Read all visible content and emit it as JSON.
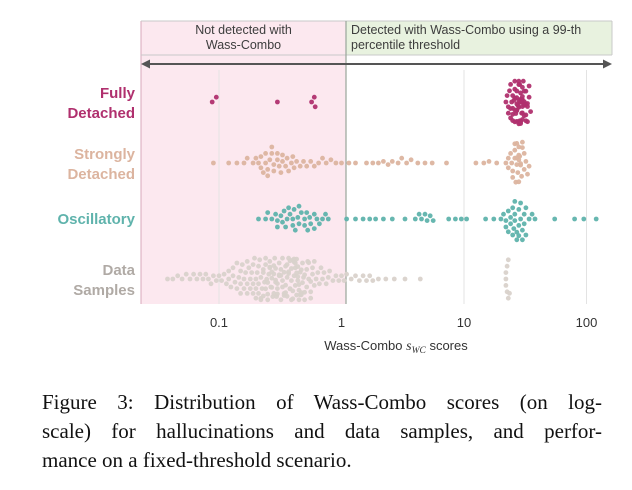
{
  "chart_data": {
    "type": "scatter",
    "subtype": "beeswarm",
    "xscale": "log",
    "xlim": [
      0.03,
      150
    ],
    "xticks": [
      0.1,
      1,
      10,
      100
    ],
    "xtick_labels": [
      "0.1",
      "1",
      "10",
      "100"
    ],
    "xlabel": "Wass-Combo s_WC scores",
    "xlabel_main": "Wass-Combo ",
    "xlabel_sub_s": "s",
    "xlabel_sub_wc": "WC",
    "xlabel_tail": " scores",
    "threshold": 1.0,
    "region_left_label_line1": "Not detected with",
    "region_left_label_line2": "Wass-Combo",
    "region_right_label_line1": "Detected with Wass-Combo using a 99-th",
    "region_right_label_line2": "percentile threshold",
    "grid": "vertical",
    "colors": {
      "fully_detached": "#b0306e",
      "strongly_detached": "#dcb49f",
      "oscillatory": "#5fb3ac",
      "data_samples": "#d9d2cb",
      "left_region": "#fce8ef",
      "right_region": "#e8f2df"
    },
    "categories": [
      {
        "line1": "Fully",
        "line2": "Detached",
        "key": "fully_detached",
        "values": [
          0.088,
          0.095,
          0.3,
          0.57,
          0.6,
          0.61,
          22,
          23,
          24,
          25,
          25.5,
          26,
          26.5,
          27,
          27.5,
          28,
          28,
          28.5,
          29,
          29,
          29.5,
          30,
          30,
          30.5,
          31,
          31.5,
          32,
          33,
          34,
          35,
          22.5,
          23.5,
          24.5,
          25,
          26,
          27,
          27,
          28,
          28.5,
          29,
          30,
          30,
          31,
          32,
          33,
          34,
          23,
          24,
          25,
          26,
          27,
          28,
          29,
          29.5,
          30,
          31,
          32,
          33,
          24,
          25,
          26,
          27,
          28,
          29,
          30,
          31,
          32,
          26,
          27,
          28,
          29,
          30,
          28,
          29
        ]
      },
      {
        "line1": "Strongly",
        "line2": "Detached",
        "key": "strongly_detached",
        "values": [
          0.09,
          0.12,
          0.14,
          0.16,
          0.17,
          0.19,
          0.2,
          0.21,
          0.22,
          0.23,
          0.24,
          0.25,
          0.26,
          0.27,
          0.28,
          0.3,
          0.31,
          0.33,
          0.35,
          0.37,
          0.39,
          0.41,
          0.43,
          0.46,
          0.49,
          0.52,
          0.56,
          0.6,
          0.65,
          0.7,
          0.75,
          0.82,
          0.9,
          1.0,
          1.15,
          1.3,
          1.6,
          1.8,
          2.0,
          2.2,
          2.4,
          2.6,
          2.9,
          3.1,
          3.4,
          3.7,
          4.2,
          4.8,
          5.5,
          7.2,
          12.5,
          14.5,
          16,
          18.5,
          0.22,
          0.25,
          0.27,
          0.3,
          0.33,
          0.36,
          0.4,
          0.24,
          0.28,
          0.32,
          22,
          23,
          24,
          25,
          26,
          27,
          27.5,
          28,
          28.5,
          29,
          30,
          31,
          32,
          33,
          34,
          23,
          24.5,
          26,
          27,
          28,
          29,
          30,
          31,
          25,
          26.5,
          28,
          29.5,
          27,
          28,
          26
        ]
      },
      {
        "line1": "Oscillatory",
        "line2": "",
        "key": "oscillatory",
        "values": [
          0.21,
          0.24,
          0.27,
          0.29,
          0.3,
          0.32,
          0.34,
          0.36,
          0.38,
          0.4,
          0.42,
          0.44,
          0.47,
          0.5,
          0.53,
          0.56,
          0.6,
          0.63,
          0.66,
          0.7,
          0.74,
          0.78,
          0.25,
          0.3,
          0.33,
          0.37,
          0.41,
          0.45,
          0.5,
          0.55,
          0.6,
          0.35,
          0.4,
          0.45,
          0.52,
          1.1,
          1.3,
          1.5,
          1.7,
          1.9,
          2.2,
          2.6,
          3.3,
          4.0,
          4.3,
          4.5,
          4.8,
          5.0,
          5.3,
          5.6,
          7.5,
          8.5,
          9.5,
          10.5,
          15,
          17.5,
          20,
          21,
          22,
          23,
          24,
          25,
          25.5,
          26,
          27,
          28,
          29,
          30,
          31,
          32,
          34,
          36,
          38,
          22,
          24,
          26,
          28,
          30,
          32,
          23,
          25,
          27,
          29,
          31,
          26,
          28,
          55,
          80,
          95,
          120
        ]
      },
      {
        "line1": "Data",
        "line2": "Samples",
        "key": "data_samples",
        "values": [
          0.038,
          0.042,
          0.046,
          0.05,
          0.054,
          0.058,
          0.062,
          0.066,
          0.07,
          0.074,
          0.078,
          0.082,
          0.086,
          0.09,
          0.095,
          0.1,
          0.105,
          0.11,
          0.115,
          0.12,
          0.125,
          0.13,
          0.135,
          0.14,
          0.145,
          0.15,
          0.155,
          0.16,
          0.165,
          0.17,
          0.175,
          0.18,
          0.185,
          0.19,
          0.195,
          0.2,
          0.205,
          0.21,
          0.215,
          0.22,
          0.225,
          0.23,
          0.235,
          0.24,
          0.245,
          0.25,
          0.255,
          0.26,
          0.265,
          0.27,
          0.275,
          0.28,
          0.285,
          0.29,
          0.295,
          0.3,
          0.31,
          0.32,
          0.33,
          0.34,
          0.35,
          0.36,
          0.37,
          0.38,
          0.39,
          0.4,
          0.41,
          0.42,
          0.43,
          0.44,
          0.45,
          0.46,
          0.47,
          0.48,
          0.49,
          0.5,
          0.52,
          0.54,
          0.56,
          0.58,
          0.6,
          0.62,
          0.64,
          0.66,
          0.68,
          0.7,
          0.72,
          0.75,
          0.78,
          0.8,
          0.85,
          0.9,
          0.95,
          1.0,
          1.05,
          1.1,
          1.2,
          1.3,
          0.12,
          0.13,
          0.14,
          0.15,
          0.16,
          0.17,
          0.18,
          0.19,
          0.2,
          0.21,
          0.22,
          0.23,
          0.24,
          0.25,
          0.26,
          0.27,
          0.28,
          0.29,
          0.3,
          0.31,
          0.32,
          0.33,
          0.34,
          0.35,
          0.36,
          0.37,
          0.38,
          0.39,
          0.4,
          0.41,
          0.42,
          0.43,
          0.44,
          0.45,
          0.46,
          0.47,
          0.48,
          0.5,
          0.52,
          0.54,
          0.56,
          0.58,
          0.6,
          0.15,
          0.17,
          0.19,
          0.21,
          0.23,
          0.25,
          0.27,
          0.29,
          0.31,
          0.33,
          0.35,
          0.37,
          0.39,
          0.41,
          0.43,
          0.45,
          0.47,
          0.5,
          0.53,
          0.56,
          0.2,
          0.22,
          0.24,
          0.26,
          0.28,
          0.3,
          0.32,
          0.34,
          0.36,
          0.38,
          0.4,
          0.42,
          0.44,
          1.4,
          1.6,
          1.8,
          2.0,
          2.3,
          2.7,
          3.3,
          4.4,
          1.5,
          1.7,
          22,
          23,
          22.5,
          23.5,
          22,
          23,
          22.5,
          22
        ]
      }
    ]
  },
  "caption": {
    "line1": "Figure 3: Distribution of Wass-Combo scores (on log-",
    "line2": "scale) for hallucinations and data samples, and perfor-",
    "line3": "mance on a fixed-threshold scenario."
  }
}
